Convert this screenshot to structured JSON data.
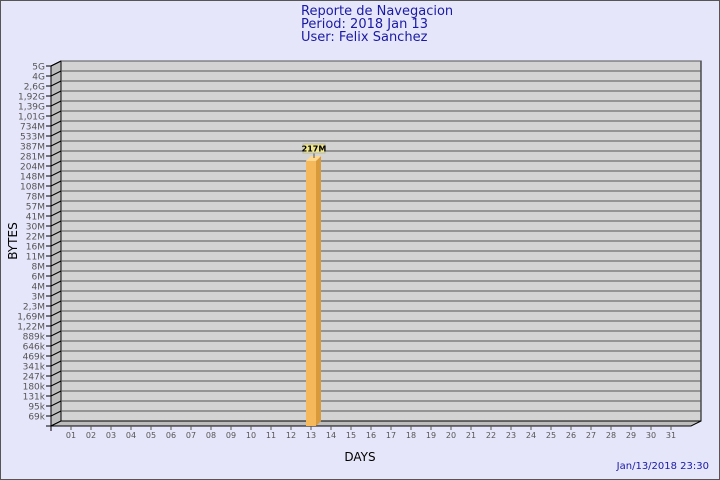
{
  "title": {
    "line1": "Reporte de Navegacion",
    "line2": "Period: 2018 Jan 13",
    "line3": "User: Felix Sanchez"
  },
  "footer": "Jan/13/2018 23:30",
  "chart_data": {
    "type": "bar",
    "xlabel": "DAYS",
    "ylabel": "BYTES",
    "y_ticks": [
      "5G",
      "4G",
      "2,6G",
      "1,92G",
      "1,39G",
      "1,01G",
      "734M",
      "533M",
      "387M",
      "281M",
      "204M",
      "148M",
      "108M",
      "78M",
      "57M",
      "41M",
      "30M",
      "22M",
      "16M",
      "11M",
      "8M",
      "6M",
      "4M",
      "3M",
      "2,3M",
      "1,69M",
      "1,22M",
      "889k",
      "646k",
      "469k",
      "341k",
      "247k",
      "180k",
      "131k",
      "95k",
      "69k"
    ],
    "categories": [
      "01",
      "02",
      "03",
      "04",
      "05",
      "06",
      "07",
      "08",
      "09",
      "10",
      "11",
      "12",
      "13",
      "14",
      "15",
      "16",
      "17",
      "18",
      "19",
      "20",
      "21",
      "22",
      "23",
      "24",
      "25",
      "26",
      "27",
      "28",
      "29",
      "30",
      "31"
    ],
    "bars": [
      {
        "category": "13",
        "value": "217M",
        "tick_position": 9.5
      }
    ],
    "grid": true,
    "colors": {
      "bar": "#f5b85a",
      "bar_side": "#d99a3c",
      "wall": "#d3d3d3",
      "label_bg": "#f0e68c"
    }
  }
}
